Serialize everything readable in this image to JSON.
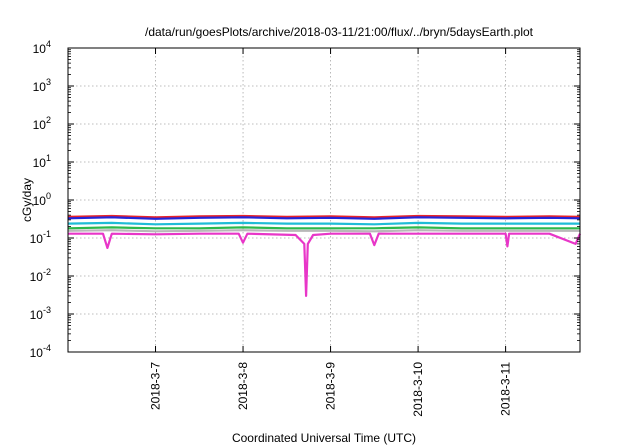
{
  "chart_data": {
    "type": "line",
    "title": "/data/run/goesPlots/archive/2018-03-11/21:00/flux/../bryn/5daysEarth.plot",
    "xlabel": "Coordinated Universal Time (UTC)",
    "ylabel": "cGy/day",
    "yscale": "log",
    "ylim": [
      0.0001,
      10000
    ],
    "xlim": [
      0,
      5.85
    ],
    "y_ticks": [
      {
        "base": "10",
        "exp": "-4",
        "value": 0.0001
      },
      {
        "base": "10",
        "exp": "-3",
        "value": 0.001
      },
      {
        "base": "10",
        "exp": "-2",
        "value": 0.01
      },
      {
        "base": "10",
        "exp": "-1",
        "value": 0.1
      },
      {
        "base": "10",
        "exp": "0",
        "value": 1
      },
      {
        "base": "10",
        "exp": "1",
        "value": 10
      },
      {
        "base": "10",
        "exp": "2",
        "value": 100
      },
      {
        "base": "10",
        "exp": "3",
        "value": 1000
      },
      {
        "base": "10",
        "exp": "4",
        "value": 10000
      }
    ],
    "x_ticks": [
      {
        "label": "2018-3-7",
        "value": 1
      },
      {
        "label": "2018-3-8",
        "value": 2
      },
      {
        "label": "2018-3-9",
        "value": 3
      },
      {
        "label": "2018-3-10",
        "value": 4
      },
      {
        "label": "2018-3-11",
        "value": 5
      }
    ],
    "grid": true,
    "series": [
      {
        "color": "#e8242a",
        "x": [
          0,
          0.5,
          1,
          1.5,
          2,
          2.5,
          3,
          3.5,
          4,
          4.5,
          5,
          5.5,
          5.85
        ],
        "values": [
          0.36,
          0.38,
          0.35,
          0.37,
          0.38,
          0.36,
          0.37,
          0.35,
          0.38,
          0.37,
          0.36,
          0.37,
          0.36
        ]
      },
      {
        "color": "#2424d8",
        "x": [
          0,
          0.5,
          1,
          1.5,
          2,
          2.5,
          3,
          3.5,
          4,
          4.5,
          5,
          5.5,
          5.85
        ],
        "values": [
          0.33,
          0.35,
          0.32,
          0.34,
          0.35,
          0.33,
          0.34,
          0.32,
          0.35,
          0.34,
          0.33,
          0.34,
          0.33
        ]
      },
      {
        "color": "#1fbcd6",
        "x": [
          0,
          0.5,
          1,
          1.5,
          2,
          2.5,
          3,
          3.5,
          4,
          4.5,
          5,
          5.5,
          5.85
        ],
        "values": [
          0.24,
          0.25,
          0.23,
          0.24,
          0.25,
          0.24,
          0.24,
          0.23,
          0.25,
          0.24,
          0.24,
          0.24,
          0.24
        ]
      },
      {
        "color": "#2db84a",
        "x": [
          0,
          0.5,
          1,
          1.5,
          2,
          2.5,
          3,
          3.5,
          4,
          4.5,
          5,
          5.5,
          5.85
        ],
        "values": [
          0.18,
          0.19,
          0.18,
          0.18,
          0.19,
          0.18,
          0.18,
          0.18,
          0.19,
          0.18,
          0.18,
          0.18,
          0.18
        ]
      },
      {
        "color": "#b8b8b8",
        "x": [
          0,
          0.5,
          1,
          1.5,
          2,
          2.5,
          3,
          3.5,
          4,
          4.5,
          5,
          5.5,
          5.85
        ],
        "values": [
          0.155,
          0.16,
          0.15,
          0.155,
          0.16,
          0.155,
          0.155,
          0.15,
          0.16,
          0.155,
          0.155,
          0.155,
          0.155
        ]
      },
      {
        "color": "#e836c8",
        "x": [
          0,
          0.4,
          0.45,
          0.5,
          1,
          1.5,
          1.95,
          2.0,
          2.05,
          2.6,
          2.7,
          2.72,
          2.74,
          2.8,
          3,
          3.45,
          3.5,
          3.55,
          4,
          4.5,
          5.0,
          5.02,
          5.04,
          5.5,
          5.8,
          5.85
        ],
        "values": [
          0.13,
          0.13,
          0.055,
          0.13,
          0.125,
          0.13,
          0.13,
          0.075,
          0.13,
          0.12,
          0.07,
          0.003,
          0.07,
          0.12,
          0.13,
          0.13,
          0.065,
          0.13,
          0.13,
          0.13,
          0.13,
          0.06,
          0.13,
          0.13,
          0.07,
          0.13
        ]
      }
    ]
  }
}
